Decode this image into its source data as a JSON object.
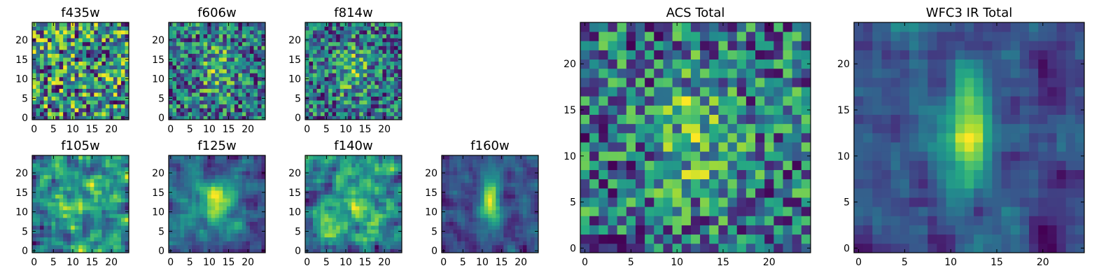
{
  "chart_data": {
    "type": "heatmap",
    "colormap": "viridis",
    "grid": false,
    "panels": [
      {
        "id": "f435w",
        "title": "f435w",
        "size": 25,
        "pattern": "noise",
        "seed": 11,
        "xlim": [
          0,
          24
        ],
        "ylim": [
          0,
          24
        ],
        "xticks": [
          0,
          5,
          10,
          15,
          20
        ],
        "yticks": [
          0,
          5,
          10,
          15,
          20
        ]
      },
      {
        "id": "f606w",
        "title": "f606w",
        "size": 25,
        "pattern": "faint-center",
        "seed": 23,
        "xlim": [
          0,
          24
        ],
        "ylim": [
          0,
          24
        ],
        "xticks": [
          0,
          5,
          10,
          15,
          20
        ],
        "yticks": [
          0,
          5,
          10,
          15,
          20
        ]
      },
      {
        "id": "f814w",
        "title": "f814w",
        "size": 25,
        "pattern": "faint-center",
        "seed": 37,
        "xlim": [
          0,
          24
        ],
        "ylim": [
          0,
          24
        ],
        "xticks": [
          0,
          5,
          10,
          15,
          20
        ],
        "yticks": [
          0,
          5,
          10,
          15,
          20
        ]
      },
      {
        "id": "f105w",
        "title": "f105w",
        "size": 25,
        "pattern": "smooth",
        "seed": 41,
        "xlim": [
          0,
          24
        ],
        "ylim": [
          0,
          24
        ],
        "xticks": [
          0,
          5,
          10,
          15,
          20
        ],
        "yticks": [
          0,
          5,
          10,
          15,
          20
        ]
      },
      {
        "id": "f125w",
        "title": "f125w",
        "size": 25,
        "pattern": "center-blob",
        "seed": 53,
        "xlim": [
          0,
          24
        ],
        "ylim": [
          0,
          24
        ],
        "xticks": [
          0,
          5,
          10,
          15,
          20
        ],
        "yticks": [
          0,
          5,
          10,
          15,
          20
        ]
      },
      {
        "id": "f140w",
        "title": "f140w",
        "size": 25,
        "pattern": "smooth",
        "seed": 67,
        "xlim": [
          0,
          24
        ],
        "ylim": [
          0,
          24
        ],
        "xticks": [
          0,
          5,
          10,
          15,
          20
        ],
        "yticks": [
          0,
          5,
          10,
          15,
          20
        ]
      },
      {
        "id": "f160w",
        "title": "f160w",
        "size": 25,
        "pattern": "elongated-center",
        "seed": 79,
        "xlim": [
          0,
          24
        ],
        "ylim": [
          0,
          24
        ],
        "xticks": [
          0,
          5,
          10,
          15,
          20
        ],
        "yticks": [
          0,
          5,
          10,
          15,
          20
        ]
      },
      {
        "id": "acs-total",
        "title": "ACS Total",
        "size": 25,
        "pattern": "faint-center",
        "seed": 97,
        "xlim": [
          0,
          24
        ],
        "ylim": [
          0,
          24
        ],
        "xticks": [
          0,
          5,
          10,
          15,
          20
        ],
        "yticks": [
          0,
          5,
          10,
          15,
          20
        ]
      },
      {
        "id": "wfc3-ir-total",
        "title": "WFC3 IR Total",
        "size": 25,
        "pattern": "elongated-center",
        "seed": 131,
        "xlim": [
          0,
          24
        ],
        "ylim": [
          0,
          24
        ],
        "xticks": [
          0,
          5,
          10,
          15,
          20
        ],
        "yticks": [
          0,
          5,
          10,
          15,
          20
        ]
      }
    ]
  }
}
